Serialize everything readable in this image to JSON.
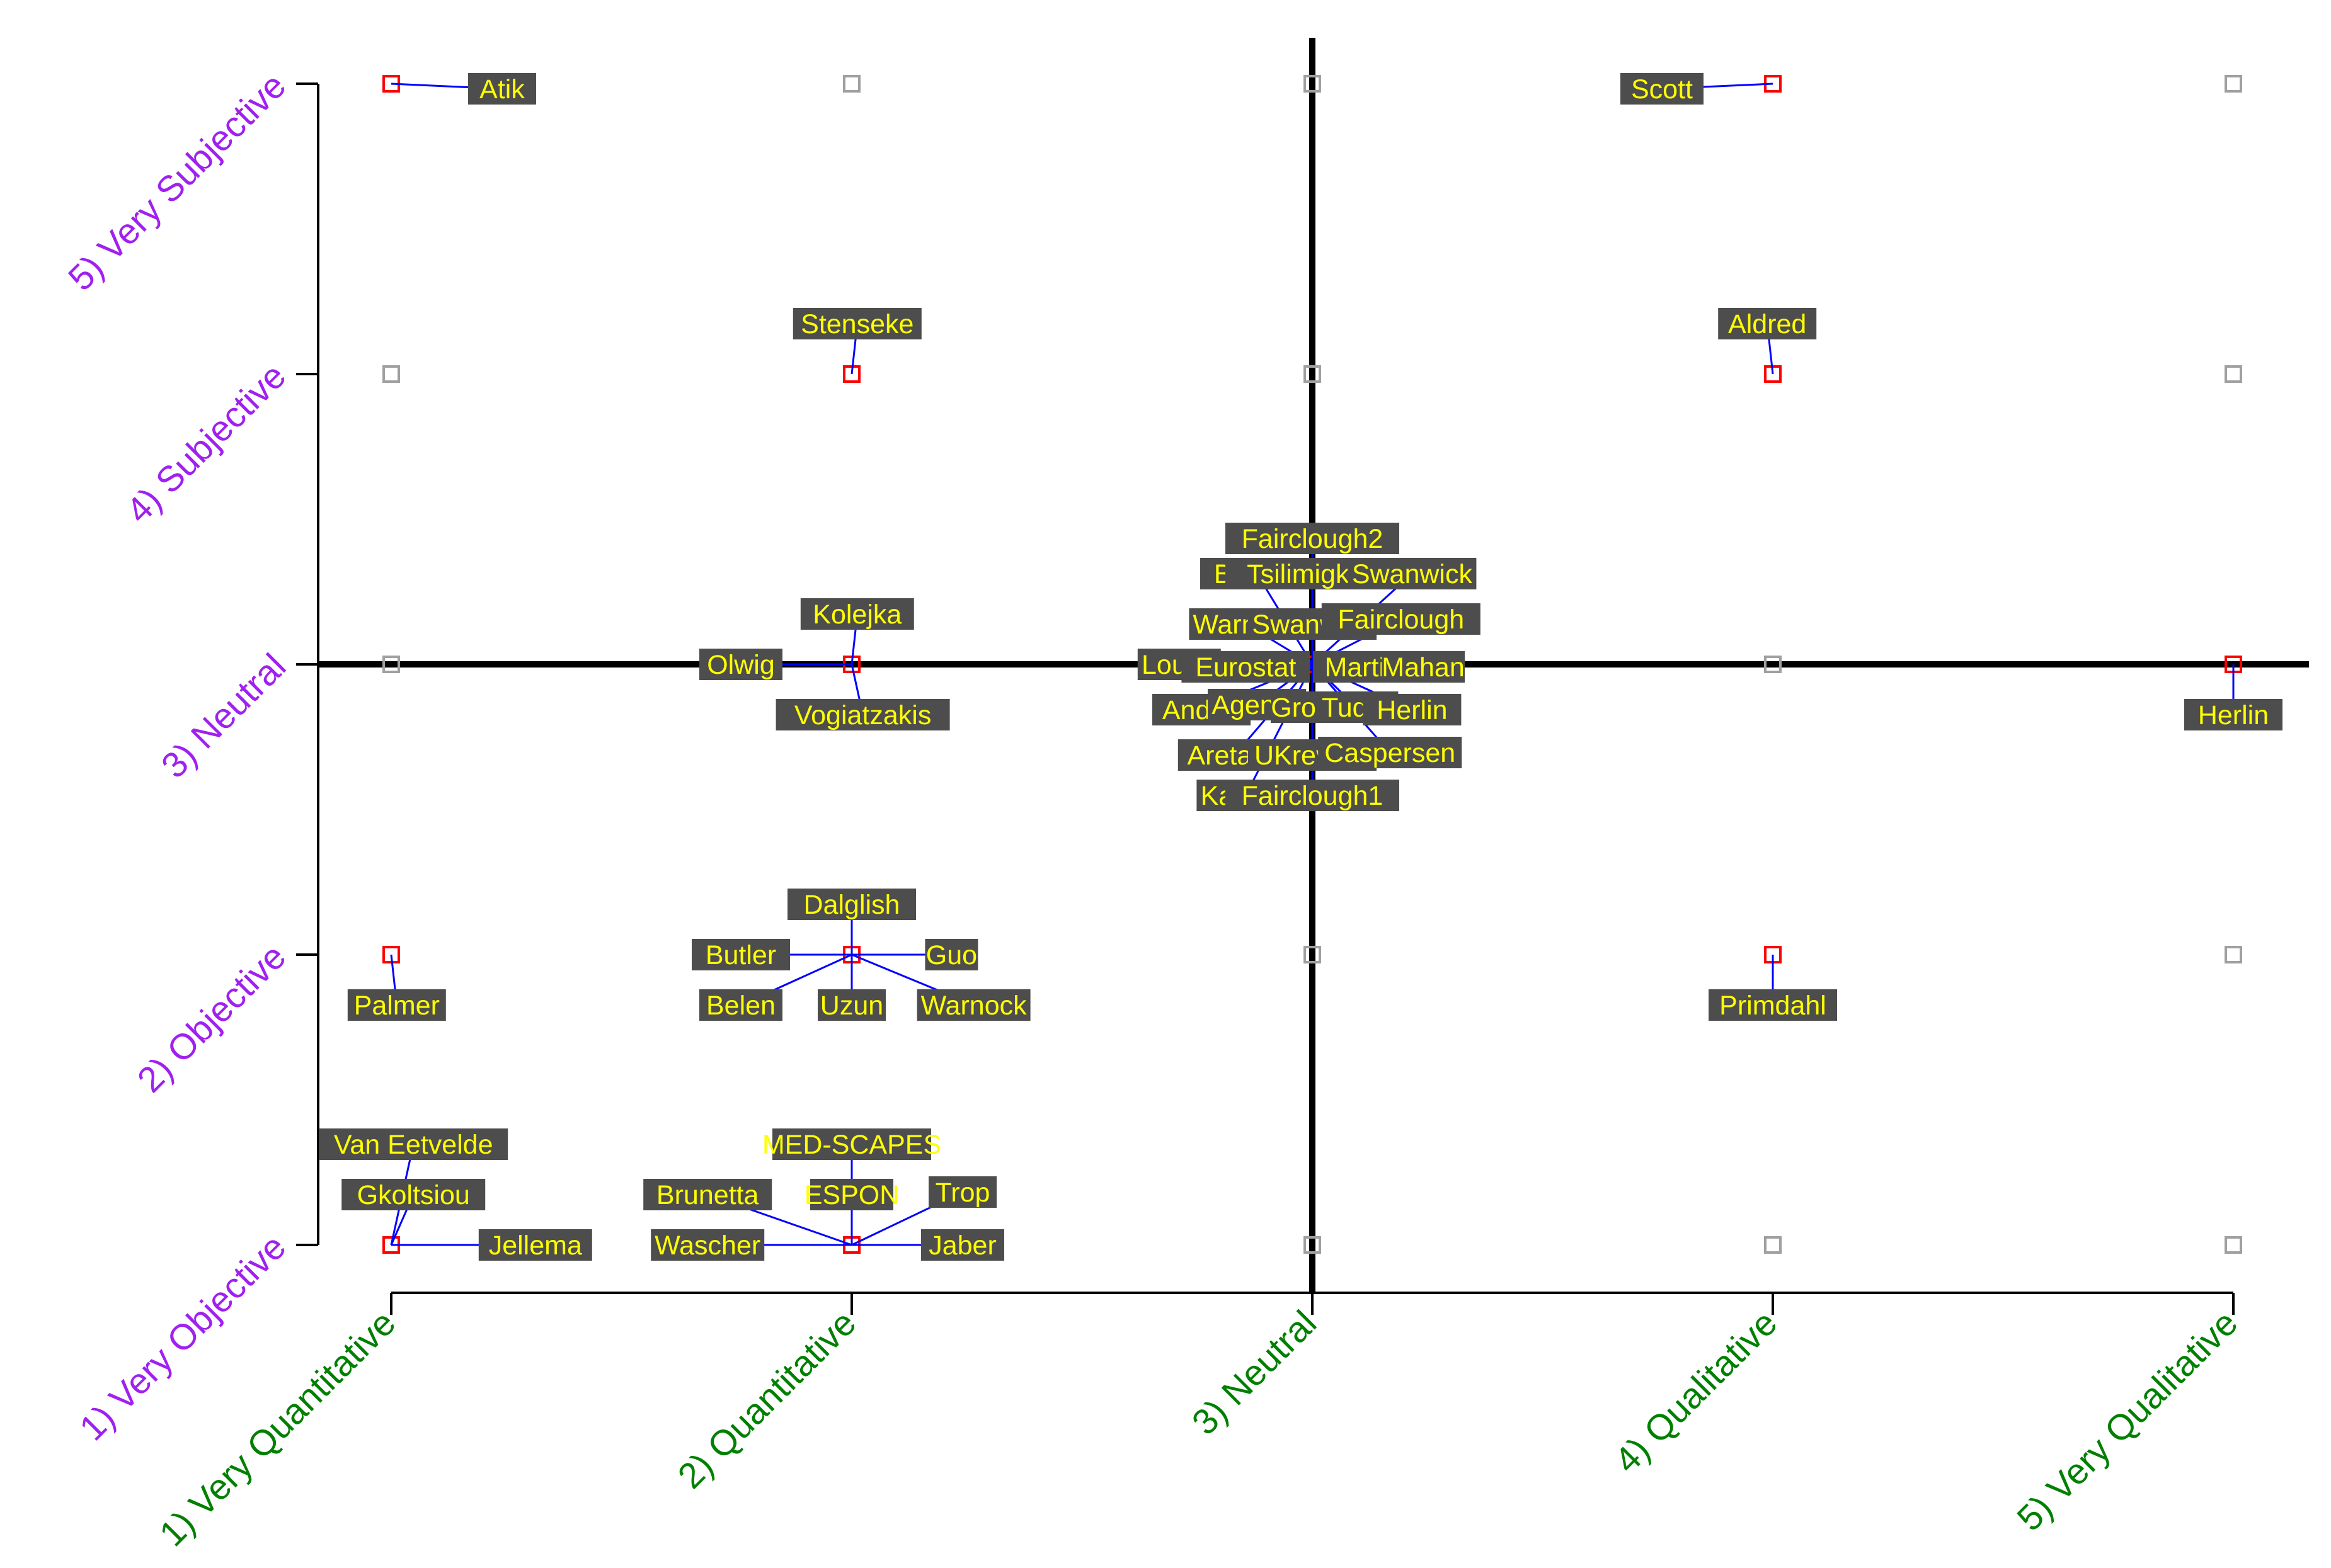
{
  "chart_data": {
    "type": "scatter",
    "title": "",
    "xlabel": "",
    "ylabel": "",
    "xlim": [
      1,
      5
    ],
    "ylim": [
      1,
      5
    ],
    "grid": false,
    "x_ticks": [
      "1) Very Quantitative",
      "2) Quantitative",
      "3) Neutral",
      "4) Qualitative",
      "5) Very Qualitative"
    ],
    "y_ticks": [
      "1) Very Objective",
      "2) Objective",
      "3) Neutral",
      "4) Subjective",
      "5) Very Subjective"
    ],
    "x_tick_color": "#008000",
    "y_tick_color": "#a020f0",
    "occupied_marker_color": "#ff0000",
    "empty_marker_color": "#a0a0a0",
    "leader_color": "#0000ff",
    "label_bg": "#4d4d4d",
    "label_fg": "#ffff00",
    "points": [
      {
        "x": 1,
        "y": 5,
        "labels": [
          {
            "text": "Atik",
            "dir": [
              1.0,
              -0.1
            ]
          }
        ]
      },
      {
        "x": 4,
        "y": 5,
        "labels": [
          {
            "text": "Scott",
            "dir": [
              -1.0,
              -0.1
            ]
          }
        ]
      },
      {
        "x": 2,
        "y": 4,
        "labels": [
          {
            "text": "Stenseke",
            "dir": [
              0.05,
              1.0
            ]
          }
        ]
      },
      {
        "x": 4,
        "y": 4,
        "labels": [
          {
            "text": "Aldred",
            "dir": [
              -0.05,
              1.0
            ]
          }
        ]
      },
      {
        "x": 2,
        "y": 3,
        "labels": [
          {
            "text": "Kolejka",
            "dir": [
              0.05,
              1.0
            ]
          },
          {
            "text": "Olwig",
            "dir": [
              -1.0,
              0.0
            ]
          },
          {
            "text": "Vogiatzakis",
            "dir": [
              0.1,
              -1.0
            ]
          }
        ]
      },
      {
        "x": 3,
        "y": 3,
        "labels": [
          {
            "text": "Fairclough2",
            "dir": [
              0.0,
              2.5
            ]
          },
          {
            "text": "Butler2",
            "dir": [
              -0.5,
              1.8
            ]
          },
          {
            "text": "Tsilimigkas",
            "dir": [
              0.0,
              1.8
            ]
          },
          {
            "text": "Swanwick",
            "dir": [
              0.9,
              1.8
            ]
          },
          {
            "text": "Warnock",
            "dir": [
              -0.6,
              0.8
            ]
          },
          {
            "text": "Swanwick",
            "dir": [
              0.0,
              0.8
            ]
          },
          {
            "text": "Fairclough",
            "dir": [
              0.8,
              0.9
            ]
          },
          {
            "text": "Loupa",
            "dir": [
              -1.2,
              0.0
            ]
          },
          {
            "text": "Eurostat",
            "dir": [
              -0.6,
              -0.05
            ]
          },
          {
            "text": "Martin",
            "dir": [
              0.45,
              -0.05
            ]
          },
          {
            "text": "Mahan",
            "dir": [
              1.0,
              -0.05
            ]
          },
          {
            "text": "Andlar",
            "dir": [
              -1.0,
              -0.9
            ]
          },
          {
            "text": "Agency",
            "dir": [
              -0.5,
              -0.8
            ]
          },
          {
            "text": "Groom",
            "dir": [
              0.0,
              -0.85
            ]
          },
          {
            "text": "Tudor",
            "dir": [
              0.4,
              -0.85
            ]
          },
          {
            "text": "Herlin",
            "dir": [
              0.9,
              -0.9
            ]
          },
          {
            "text": "Aretano",
            "dir": [
              -0.7,
              -1.8
            ]
          },
          {
            "text": "UKreview",
            "dir": [
              0.0,
              -1.8
            ]
          },
          {
            "text": "Caspersen",
            "dir": [
              0.7,
              -1.75
            ]
          },
          {
            "text": "Kayhko",
            "dir": [
              -0.6,
              -2.6
            ]
          },
          {
            "text": "Fairclough1",
            "dir": [
              0.0,
              -2.6
            ]
          }
        ]
      },
      {
        "x": 5,
        "y": 3,
        "labels": [
          {
            "text": "Herlin",
            "dir": [
              0.0,
              -1.0
            ]
          }
        ]
      },
      {
        "x": 1,
        "y": 2,
        "labels": [
          {
            "text": "Palmer",
            "dir": [
              0.05,
              -1.0
            ]
          }
        ]
      },
      {
        "x": 2,
        "y": 2,
        "labels": [
          {
            "text": "Dalglish",
            "dir": [
              0.0,
              1.0
            ]
          },
          {
            "text": "Butler",
            "dir": [
              -1.0,
              0.0
            ]
          },
          {
            "text": "Guo",
            "dir": [
              0.9,
              0.0
            ]
          },
          {
            "text": "Belen",
            "dir": [
              -1.0,
              -1.0
            ]
          },
          {
            "text": "Uzun",
            "dir": [
              0.0,
              -1.0
            ]
          },
          {
            "text": "Warnock",
            "dir": [
              1.1,
              -1.0
            ]
          }
        ]
      },
      {
        "x": 4,
        "y": 2,
        "labels": [
          {
            "text": "Primdahl",
            "dir": [
              0.0,
              -1.0
            ]
          }
        ]
      },
      {
        "x": 1,
        "y": 1,
        "labels": [
          {
            "text": "Van Eetvelde",
            "dir": [
              0.2,
              2.0
            ]
          },
          {
            "text": "Gkoltsiou",
            "dir": [
              0.2,
              1.0
            ]
          },
          {
            "text": "Jellema",
            "dir": [
              1.3,
              0.0
            ]
          }
        ]
      },
      {
        "x": 2,
        "y": 1,
        "labels": [
          {
            "text": "MED-SCAPES",
            "dir": [
              0.0,
              2.0
            ]
          },
          {
            "text": "Brunetta",
            "dir": [
              -1.3,
              1.0
            ]
          },
          {
            "text": "ESPON",
            "dir": [
              0.0,
              1.0
            ]
          },
          {
            "text": "Trop",
            "dir": [
              1.0,
              1.05
            ]
          },
          {
            "text": "Wascher",
            "dir": [
              -1.3,
              0.0
            ]
          },
          {
            "text": "Jaber",
            "dir": [
              1.0,
              0.0
            ]
          }
        ]
      }
    ]
  }
}
